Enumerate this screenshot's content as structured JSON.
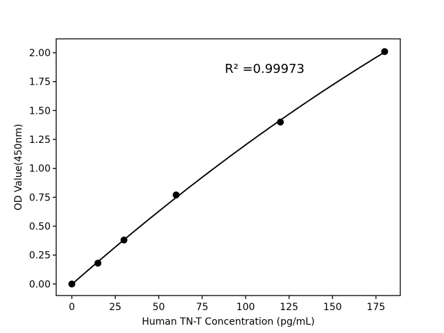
{
  "chart_data": {
    "type": "scatter",
    "title": "",
    "xlabel": "Human TN-T Concentration (pg/mL)",
    "ylabel": "OD Value(450nm)",
    "annotation": "R² =0.99973",
    "x": [
      0,
      15,
      30,
      60,
      120,
      180
    ],
    "y": [
      0.0,
      0.18,
      0.38,
      0.77,
      1.4,
      2.01
    ],
    "fit": "quadratic",
    "xlim": [
      -9,
      189
    ],
    "ylim": [
      -0.1,
      2.12
    ],
    "xticks": [
      0,
      25,
      50,
      75,
      100,
      125,
      150,
      175
    ],
    "yticks": [
      0.0,
      0.25,
      0.5,
      0.75,
      1.0,
      1.25,
      1.5,
      1.75,
      2.0
    ],
    "ytick_decimals": 2,
    "grid": false,
    "legend": null,
    "colors": {
      "marker": "#000000",
      "line": "#000000",
      "axis": "#000000",
      "text": "#000000",
      "background": "#ffffff"
    }
  }
}
